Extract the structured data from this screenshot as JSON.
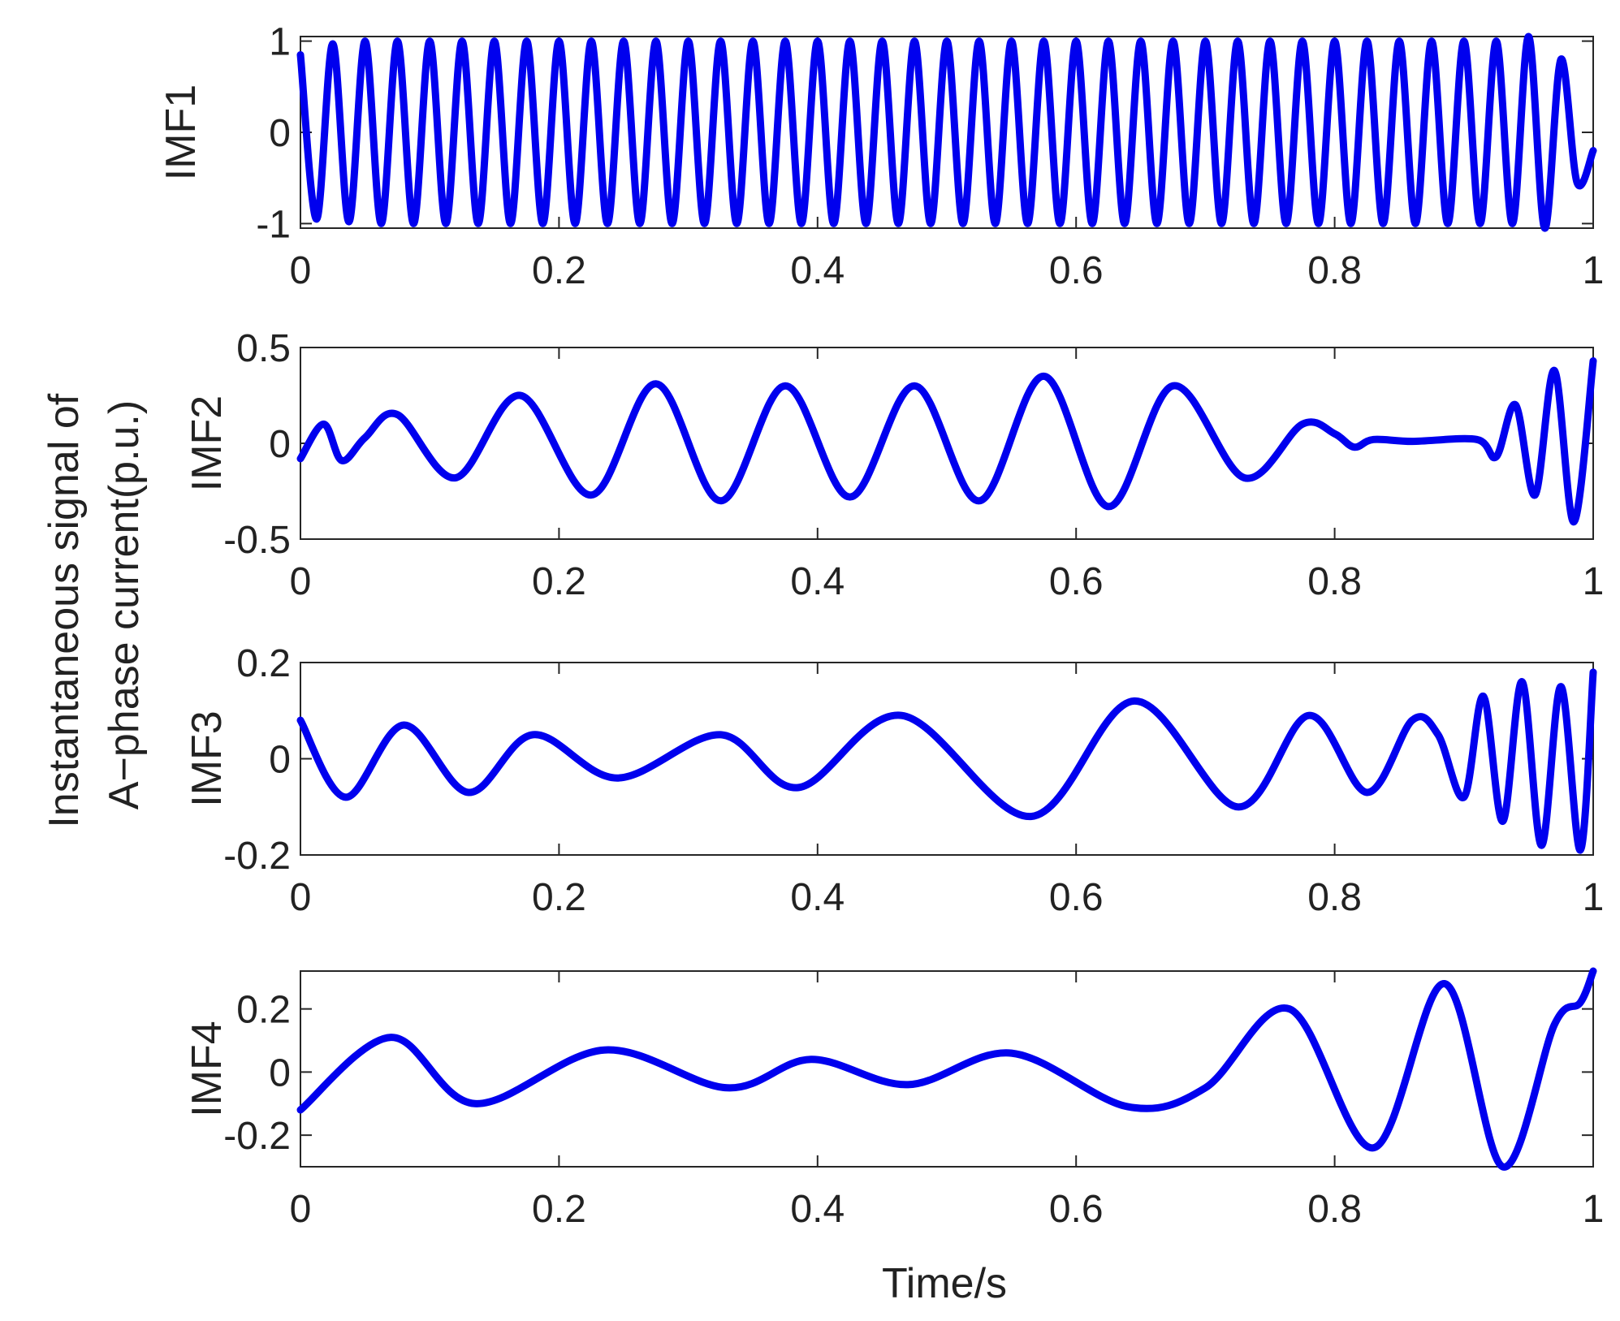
{
  "figure": {
    "shared_ylabel_lines": [
      "Instantaneous signal of",
      "A−phase current(p.u.)"
    ],
    "shared_xlabel": "Time/s",
    "line_color": "#0000ee"
  },
  "chart_data": [
    {
      "type": "line",
      "ylabel": "IMF1",
      "xlim": [
        0,
        1
      ],
      "ylim": [
        -1.05,
        1.05
      ],
      "xticks": [
        0,
        0.2,
        0.4,
        0.6,
        0.8,
        1
      ],
      "xtick_labels": [
        "0",
        "0.2",
        "0.4",
        "0.6",
        "0.8",
        "1"
      ],
      "yticks": [
        -1,
        0,
        1
      ],
      "ytick_labels": [
        "-1",
        "0",
        "1"
      ],
      "grid": false,
      "series": [
        {
          "x": [
            0,
            0.0125,
            0.025,
            0.0375,
            0.05,
            0.0625,
            0.075,
            0.0875,
            0.1,
            0.1125,
            0.125,
            0.1375,
            0.15,
            0.1625,
            0.175,
            0.1875,
            0.2,
            0.2125,
            0.225,
            0.2375,
            0.25,
            0.2625,
            0.275,
            0.2875,
            0.3,
            0.3125,
            0.325,
            0.3375,
            0.35,
            0.3625,
            0.375,
            0.3875,
            0.4,
            0.4125,
            0.425,
            0.4375,
            0.45,
            0.4625,
            0.475,
            0.4875,
            0.5,
            0.5125,
            0.525,
            0.5375,
            0.55,
            0.5625,
            0.575,
            0.5875,
            0.6,
            0.6125,
            0.625,
            0.6375,
            0.65,
            0.6625,
            0.675,
            0.6875,
            0.7,
            0.7125,
            0.725,
            0.7375,
            0.75,
            0.7625,
            0.775,
            0.7875,
            0.8,
            0.8125,
            0.825,
            0.8375,
            0.85,
            0.8625,
            0.875,
            0.8875,
            0.9,
            0.9125,
            0.925,
            0.9375,
            0.95,
            0.9625,
            0.975,
            0.9875,
            1
          ],
          "y": [
            0.85,
            -0.95,
            0.97,
            -0.98,
            1.0,
            -1.0,
            1.0,
            -1.0,
            1.0,
            -1.0,
            1.0,
            -1.0,
            1.0,
            -1.0,
            1.0,
            -1.0,
            1.0,
            -1.0,
            1.0,
            -1.0,
            1.0,
            -1.0,
            1.0,
            -1.0,
            1.0,
            -1.0,
            1.0,
            -1.0,
            1.0,
            -1.0,
            1.0,
            -1.0,
            1.0,
            -1.0,
            1.0,
            -1.0,
            1.0,
            -1.0,
            1.0,
            -1.0,
            1.0,
            -1.0,
            1.0,
            -1.0,
            1.0,
            -1.0,
            1.0,
            -1.0,
            1.0,
            -1.0,
            1.0,
            -1.0,
            1.0,
            -1.0,
            1.0,
            -1.0,
            1.0,
            -1.0,
            1.0,
            -1.0,
            1.0,
            -1.0,
            1.0,
            -1.0,
            1.0,
            -1.0,
            1.0,
            -1.0,
            1.0,
            -1.0,
            1.0,
            -1.0,
            1.0,
            -1.0,
            1.0,
            -1.0,
            1.05,
            -1.05,
            0.8,
            -0.55,
            -0.2
          ]
        }
      ]
    },
    {
      "type": "line",
      "ylabel": "IMF2",
      "xlim": [
        0,
        1
      ],
      "ylim": [
        -0.5,
        0.5
      ],
      "xticks": [
        0,
        0.2,
        0.4,
        0.6,
        0.8,
        1
      ],
      "xtick_labels": [
        "0",
        "0.2",
        "0.4",
        "0.6",
        "0.8",
        "1"
      ],
      "yticks": [
        -0.5,
        0,
        0.5
      ],
      "ytick_labels": [
        "-0.5",
        "0",
        "0.5"
      ],
      "grid": false,
      "series": [
        {
          "x": [
            0,
            0.018,
            0.032,
            0.05,
            0.075,
            0.12,
            0.17,
            0.225,
            0.275,
            0.325,
            0.375,
            0.425,
            0.475,
            0.525,
            0.575,
            0.625,
            0.675,
            0.73,
            0.775,
            0.8,
            0.815,
            0.83,
            0.86,
            0.91,
            0.925,
            0.94,
            0.955,
            0.97,
            0.985,
            1
          ],
          "y": [
            -0.08,
            0.1,
            -0.09,
            0.03,
            0.15,
            -0.18,
            0.25,
            -0.27,
            0.31,
            -0.3,
            0.3,
            -0.28,
            0.3,
            -0.3,
            0.35,
            -0.33,
            0.3,
            -0.18,
            0.1,
            0.05,
            -0.02,
            0.02,
            0.01,
            0.02,
            -0.07,
            0.2,
            -0.27,
            0.38,
            -0.41,
            0.43
          ]
        }
      ]
    },
    {
      "type": "line",
      "ylabel": "IMF3",
      "xlim": [
        0,
        1
      ],
      "ylim": [
        -0.2,
        0.2
      ],
      "xticks": [
        0,
        0.2,
        0.4,
        0.6,
        0.8,
        1
      ],
      "xtick_labels": [
        "0",
        "0.2",
        "0.4",
        "0.6",
        "0.8",
        "1"
      ],
      "yticks": [
        -0.2,
        0,
        0.2
      ],
      "ytick_labels": [
        "-0.2",
        "0",
        "0.2"
      ],
      "grid": false,
      "series": [
        {
          "x": [
            0,
            0.035,
            0.08,
            0.13,
            0.18,
            0.245,
            0.325,
            0.385,
            0.465,
            0.565,
            0.645,
            0.725,
            0.78,
            0.825,
            0.86,
            0.88,
            0.9,
            0.915,
            0.93,
            0.945,
            0.96,
            0.975,
            0.99,
            1
          ],
          "y": [
            0.08,
            -0.08,
            0.07,
            -0.07,
            0.05,
            -0.04,
            0.05,
            -0.06,
            0.09,
            -0.12,
            0.12,
            -0.1,
            0.09,
            -0.07,
            0.08,
            0.05,
            -0.08,
            0.13,
            -0.13,
            0.16,
            -0.18,
            0.15,
            -0.19,
            0.18
          ]
        }
      ]
    },
    {
      "type": "line",
      "ylabel": "IMF4",
      "xlim": [
        0,
        1
      ],
      "ylim": [
        -0.3,
        0.32
      ],
      "xticks": [
        0,
        0.2,
        0.4,
        0.6,
        0.8,
        1
      ],
      "xtick_labels": [
        "0",
        "0.2",
        "0.4",
        "0.6",
        "0.8",
        "1"
      ],
      "yticks": [
        -0.2,
        0,
        0.2
      ],
      "ytick_labels": [
        "-0.2",
        "0",
        "0.2"
      ],
      "grid": false,
      "series": [
        {
          "x": [
            0,
            0.07,
            0.135,
            0.235,
            0.33,
            0.395,
            0.47,
            0.55,
            0.64,
            0.7,
            0.765,
            0.83,
            0.885,
            0.93,
            0.97,
            0.99,
            1
          ],
          "y": [
            -0.12,
            0.11,
            -0.1,
            0.07,
            -0.05,
            0.04,
            -0.04,
            0.06,
            -0.11,
            -0.05,
            0.2,
            -0.24,
            0.28,
            -0.3,
            0.15,
            0.22,
            0.32
          ]
        }
      ]
    }
  ]
}
